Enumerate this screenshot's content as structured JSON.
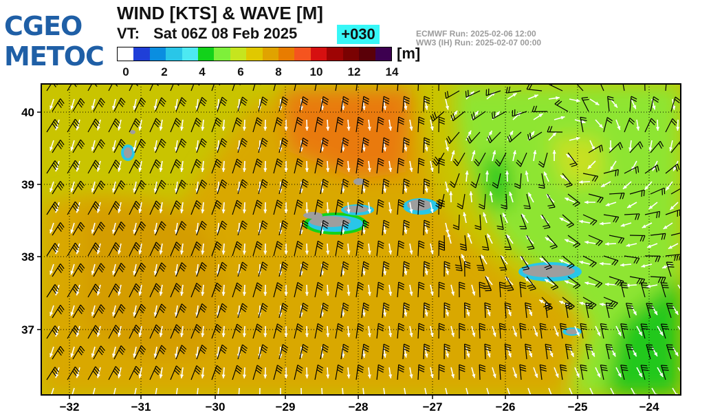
{
  "logo": {
    "line1": "CGEO",
    "line2": "METOC"
  },
  "header": {
    "title": "WIND [KTS] & WAVE [M]",
    "vt_label": "VT:",
    "valid_time": "Sat 06Z 08 Feb 2025",
    "lead": "+030",
    "run_lines": [
      "ECMWF    Run: 2025-02-06 12:00",
      "WW3 (IH) Run: 2025-02-07 00:00"
    ]
  },
  "colorbar": {
    "unit": "[m]",
    "colors": [
      "#ffffff",
      "#1f3fd8",
      "#0a8ee0",
      "#29c6e8",
      "#4de9f2",
      "#12d21a",
      "#7ef03a",
      "#c6e51e",
      "#e0c800",
      "#e0a300",
      "#e87c00",
      "#f5541f",
      "#d61010",
      "#9e0404",
      "#7a0202",
      "#5a0008",
      "#3d0050"
    ],
    "ticks": [
      "0",
      "2",
      "4",
      "6",
      "8",
      "10",
      "12",
      "14"
    ]
  },
  "map": {
    "lon_ticks": [
      "−32",
      "−31",
      "−30",
      "−29",
      "−28",
      "−27",
      "−26",
      "−25",
      "−24"
    ],
    "lat_ticks": [
      "40",
      "39",
      "38",
      "37"
    ],
    "lon_range": [
      -32.4,
      -23.6
    ],
    "lat_range": [
      36.1,
      40.4
    ],
    "grid": true,
    "colors": {
      "ocean_low": "#b5d400",
      "ocean_mid": "#d7b500",
      "ocean_high": "#e8790d",
      "green": "#8ae530",
      "dark_green": "#21c61a",
      "land": "#9e9e9e",
      "arrow": "#ffffff",
      "barb": "#000000"
    }
  }
}
